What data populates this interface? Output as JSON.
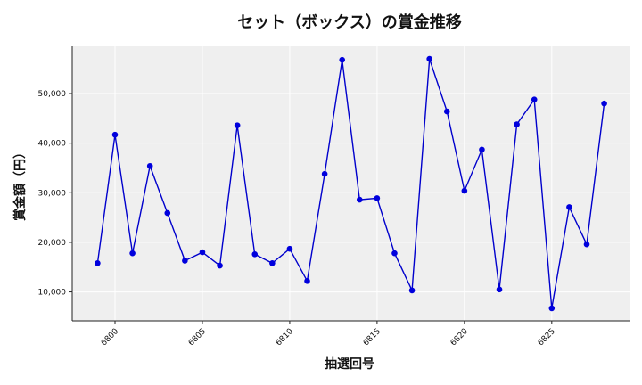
{
  "chart_data": {
    "type": "line",
    "title": "セット（ボックス）の賞金推移",
    "xlabel": "抽選回号",
    "ylabel": "賞金額（円）",
    "x": [
      6799,
      6800,
      6801,
      6802,
      6803,
      6804,
      6805,
      6806,
      6807,
      6808,
      6809,
      6810,
      6811,
      6812,
      6813,
      6814,
      6815,
      6816,
      6817,
      6818,
      6819,
      6820,
      6821,
      6822,
      6823,
      6824,
      6825,
      6826,
      6827,
      6828
    ],
    "series": [
      {
        "values": [
          15800,
          41700,
          17800,
          35400,
          25900,
          16300,
          18000,
          15300,
          43600,
          17600,
          15800,
          18700,
          12200,
          33800,
          56800,
          28600,
          28900,
          17800,
          10300,
          57000,
          46400,
          30400,
          38700,
          10500,
          43800,
          48800,
          6700,
          27100,
          19600,
          48000
        ]
      }
    ],
    "xticks": [
      6800,
      6805,
      6810,
      6815,
      6820,
      6825
    ],
    "yticks": [
      10000,
      20000,
      30000,
      40000,
      50000
    ],
    "ytick_labels": [
      "10,000",
      "20,000",
      "30,000",
      "40,000",
      "50,000"
    ],
    "xlim": [
      6797.55,
      6829.45
    ],
    "ylim": [
      4170,
      59530
    ],
    "grid": true,
    "colors": {
      "line": "#0000cc",
      "marker": "#0000dd",
      "plot_bg": "#efefef",
      "grid": "#ffffff"
    }
  }
}
